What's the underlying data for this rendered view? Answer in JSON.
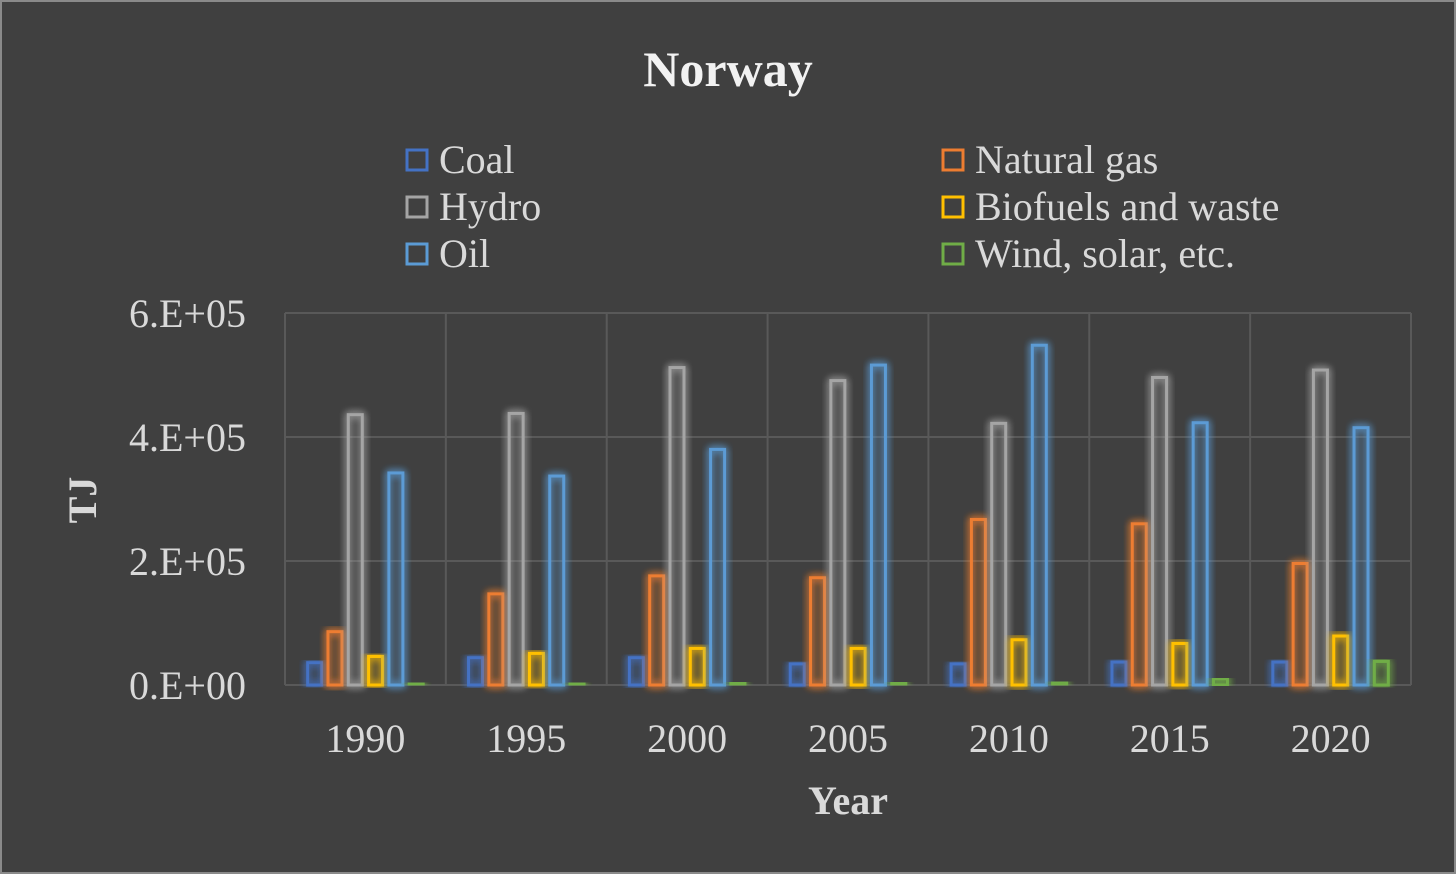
{
  "chart_data": {
    "type": "bar",
    "title": "Norway",
    "xlabel": "Year",
    "ylabel": "TJ",
    "categories": [
      "1990",
      "1995",
      "2000",
      "2005",
      "2010",
      "2015",
      "2020"
    ],
    "ylim": [
      0,
      600000
    ],
    "yticks": [
      0,
      200000,
      400000,
      600000
    ],
    "ytick_labels": [
      "0.E+00",
      "2.E+05",
      "4.E+05",
      "6.E+05"
    ],
    "grid": true,
    "legend_position": "top",
    "series": [
      {
        "name": "Coal",
        "color": "#4472c4",
        "values": [
          36000,
          44000,
          44000,
          34000,
          34000,
          37000,
          37000
        ]
      },
      {
        "name": "Natural gas",
        "color": "#ed7d31",
        "values": [
          86000,
          147000,
          176000,
          173000,
          267000,
          260000,
          196000
        ]
      },
      {
        "name": "Hydro",
        "color": "#a5a5a5",
        "values": [
          436000,
          438000,
          512000,
          491000,
          422000,
          496000,
          508000
        ]
      },
      {
        "name": "Biofuels and waste",
        "color": "#ffc000",
        "values": [
          46000,
          51000,
          59000,
          59000,
          73000,
          67000,
          79000
        ]
      },
      {
        "name": "Oil",
        "color": "#5b9bd5",
        "values": [
          342000,
          337000,
          380000,
          516000,
          548000,
          423000,
          415000
        ]
      },
      {
        "name": "Wind, solar, etc.",
        "color": "#70ad47",
        "values": [
          1000,
          3000,
          4000,
          4000,
          5000,
          10000,
          38000
        ]
      }
    ]
  }
}
